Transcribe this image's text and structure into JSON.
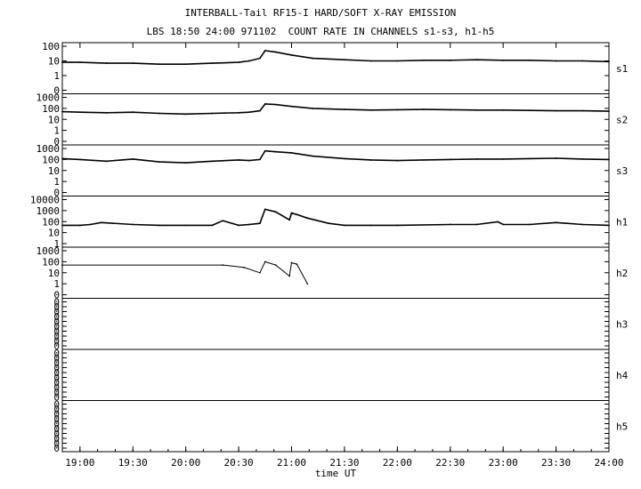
{
  "title": "INTERBALL-Tail RF15-I HARD/SOFT X-RAY EMISSION",
  "subtitle": "LBS 18:50 24:00 971102  COUNT RATE IN CHANNELS s1-s3, h1-h5",
  "chart_data": {
    "type": "line",
    "xlabel": "time UT",
    "x_range_hours": [
      18.833,
      24.0
    ],
    "x_ticks": [
      "19:00",
      "19:30",
      "20:00",
      "20:30",
      "21:00",
      "21:30",
      "22:00",
      "22:30",
      "23:00",
      "23:30",
      "24:00"
    ],
    "x_tick_hours": [
      19.0,
      19.5,
      20.0,
      20.5,
      21.0,
      21.5,
      22.0,
      22.5,
      23.0,
      23.5,
      24.0
    ],
    "y_scale": "log",
    "grid": false,
    "panels": [
      {
        "name": "s1",
        "y_ticks": [
          "100",
          "10",
          "1",
          "0"
        ],
        "series": [
          {
            "x": [
              18.833,
              19.0,
              19.25,
              19.5,
              19.75,
              20.0,
              20.25,
              20.5,
              20.6,
              20.7,
              20.75,
              20.85,
              21.0,
              21.2,
              21.5,
              21.75,
              22.0,
              22.25,
              22.5,
              22.75,
              23.0,
              23.25,
              23.5,
              23.75,
              24.0
            ],
            "y": [
              8,
              8,
              7,
              7,
              6,
              6,
              7,
              8,
              10,
              15,
              50,
              40,
              25,
              15,
              12,
              10,
              10,
              11,
              11,
              12,
              11,
              11,
              10,
              10,
              9
            ]
          }
        ]
      },
      {
        "name": "s2",
        "y_ticks": [
          "1000",
          "100",
          "10",
          "1",
          "0"
        ],
        "series": [
          {
            "x": [
              18.833,
              19.0,
              19.25,
              19.5,
              19.75,
              20.0,
              20.25,
              20.5,
              20.6,
              20.7,
              20.75,
              20.85,
              21.0,
              21.2,
              21.5,
              21.75,
              22.0,
              22.25,
              22.5,
              22.75,
              23.0,
              23.25,
              23.5,
              23.75,
              24.0
            ],
            "y": [
              50,
              45,
              40,
              45,
              35,
              30,
              35,
              40,
              45,
              60,
              250,
              220,
              150,
              100,
              80,
              70,
              75,
              80,
              75,
              70,
              70,
              65,
              60,
              60,
              55
            ]
          }
        ]
      },
      {
        "name": "s3",
        "y_ticks": [
          "1000",
          "100",
          "10",
          "1",
          "0"
        ],
        "series": [
          {
            "x": [
              18.833,
              19.0,
              19.25,
              19.5,
              19.75,
              20.0,
              20.25,
              20.5,
              20.6,
              20.7,
              20.75,
              20.85,
              21.0,
              21.2,
              21.5,
              21.75,
              22.0,
              22.25,
              22.5,
              22.75,
              23.0,
              23.25,
              23.5,
              23.75,
              24.0
            ],
            "y": [
              120,
              100,
              70,
              110,
              60,
              50,
              70,
              90,
              80,
              100,
              600,
              500,
              400,
              200,
              120,
              90,
              80,
              90,
              100,
              110,
              110,
              120,
              130,
              110,
              100
            ]
          }
        ]
      },
      {
        "name": "h1",
        "y_ticks": [
          "10000",
          "1000",
          "100",
          "10",
          "1"
        ],
        "series": [
          {
            "x": [
              18.833,
              19.0,
              19.1,
              19.2,
              19.5,
              19.75,
              20.0,
              20.25,
              20.35,
              20.5,
              20.6,
              20.7,
              20.75,
              20.85,
              20.98,
              21.0,
              21.05,
              21.15,
              21.35,
              21.5,
              21.75,
              22.0,
              22.5,
              22.75,
              22.95,
              23.0,
              23.25,
              23.5,
              23.75,
              24.0
            ],
            "y": [
              12,
              12,
              15,
              25,
              15,
              12,
              12,
              12,
              40,
              12,
              15,
              20,
              800,
              400,
              50,
              300,
              200,
              80,
              20,
              12,
              12,
              12,
              15,
              15,
              30,
              15,
              15,
              25,
              15,
              12
            ]
          }
        ]
      },
      {
        "name": "h2",
        "y_ticks": [
          "1000",
          "100",
          "10",
          "1",
          "0"
        ],
        "series": [
          {
            "x": [
              18.833,
              20.35,
              20.55,
              20.7,
              20.75,
              20.85,
              20.98,
              21.0,
              21.05,
              21.15
            ],
            "y": [
              50,
              50,
              30,
              10,
              100,
              50,
              5,
              80,
              60,
              1
            ]
          }
        ]
      },
      {
        "name": "h3",
        "y_ticks": [
          "0",
          "0",
          "0",
          "0",
          "0",
          "0",
          "0",
          "0",
          "0",
          "0"
        ],
        "series": []
      },
      {
        "name": "h4",
        "y_ticks": [
          "0",
          "0",
          "0",
          "0",
          "0",
          "0",
          "0",
          "0",
          "0",
          "0"
        ],
        "series": []
      },
      {
        "name": "h5",
        "y_ticks": [
          "0",
          "0",
          "0",
          "0",
          "0",
          "0",
          "0",
          "0",
          "0",
          "0"
        ],
        "series": []
      }
    ]
  }
}
